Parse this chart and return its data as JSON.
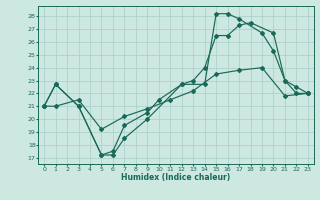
{
  "xlabel": "Humidex (Indice chaleur)",
  "bg_color": "#cce8e0",
  "grid_color": "#a8cfc8",
  "line_color": "#1a6858",
  "xlim": [
    -0.5,
    23.5
  ],
  "ylim": [
    16.5,
    28.8
  ],
  "yticks": [
    17,
    18,
    19,
    20,
    21,
    22,
    23,
    24,
    25,
    26,
    27,
    28
  ],
  "xticks": [
    0,
    1,
    2,
    3,
    4,
    5,
    6,
    7,
    8,
    9,
    10,
    11,
    12,
    13,
    14,
    15,
    16,
    17,
    18,
    19,
    20,
    21,
    22,
    23
  ],
  "line1_x": [
    0,
    1,
    3,
    5,
    6,
    7,
    9,
    12,
    14,
    15,
    16,
    17,
    19,
    20,
    21,
    22,
    23
  ],
  "line1_y": [
    21,
    22.7,
    21,
    17.2,
    17.2,
    18.5,
    20,
    22.7,
    22.7,
    28.2,
    28.2,
    27.8,
    26.7,
    25.3,
    23,
    22.5,
    22
  ],
  "line2_x": [
    0,
    1,
    3,
    5,
    6,
    7,
    9,
    10,
    12,
    13,
    14,
    15,
    16,
    17,
    18,
    20,
    21,
    22,
    23
  ],
  "line2_y": [
    21,
    22.7,
    21,
    17.2,
    17.5,
    19.5,
    20.5,
    21.5,
    22.7,
    23,
    24,
    26.5,
    26.5,
    27.3,
    27.5,
    26.7,
    23,
    22,
    22
  ],
  "line3_x": [
    0,
    1,
    3,
    5,
    7,
    9,
    11,
    13,
    15,
    17,
    19,
    21,
    23
  ],
  "line3_y": [
    21,
    21,
    21.5,
    19.2,
    20.2,
    20.8,
    21.5,
    22.2,
    23.5,
    23.8,
    24.0,
    21.8,
    22
  ]
}
